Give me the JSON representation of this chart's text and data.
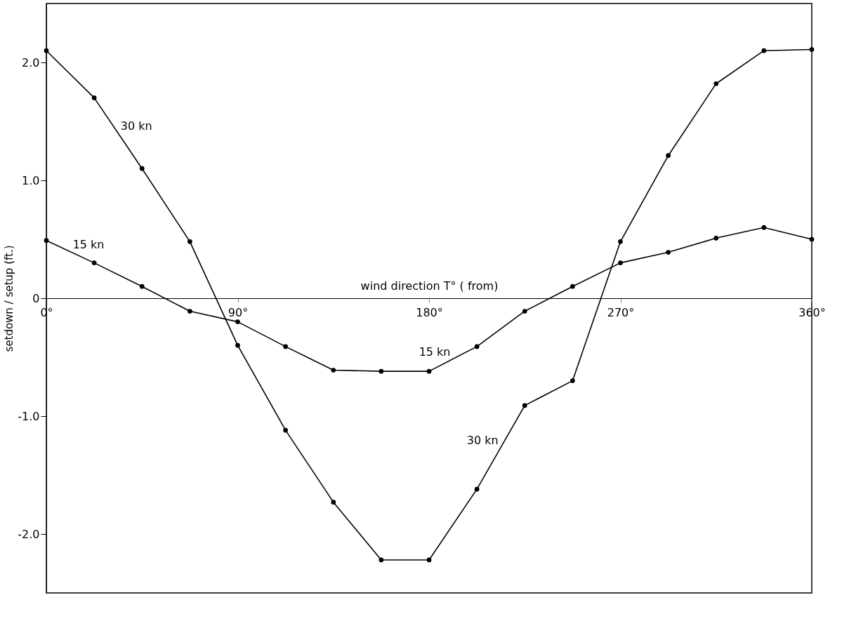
{
  "chart_data": {
    "type": "line",
    "xlabel": "wind direction  T° ( from)",
    "ylabel": "setdown / setup  (ft.)",
    "x": [
      0,
      22.5,
      45,
      67.5,
      90,
      112.5,
      135,
      157.5,
      180,
      202.5,
      225,
      247.5,
      270,
      292.5,
      315,
      337.5,
      360
    ],
    "series": [
      {
        "color": "#000000",
        "values": [
          2.1,
          1.7,
          1.1,
          0.48,
          -0.4,
          -1.12,
          -1.73,
          -2.22,
          -2.22,
          -1.62,
          -0.91,
          -0.7,
          0.48,
          1.21,
          1.82,
          2.1,
          2.11
        ]
      },
      {
        "color": "#000000",
        "values": [
          0.49,
          0.3,
          0.1,
          -0.11,
          -0.2,
          -0.41,
          -0.61,
          -0.62,
          -0.62,
          -0.41,
          -0.11,
          0.1,
          0.3,
          0.39,
          0.51,
          0.6,
          0.5
        ]
      }
    ],
    "xlim": [
      0,
      360
    ],
    "ylim": [
      -2.5,
      2.5
    ],
    "xticks": [
      {
        "value": 0,
        "label": "0°"
      },
      {
        "value": 90,
        "label": "90°"
      },
      {
        "value": 180,
        "label": "180°"
      },
      {
        "value": 270,
        "label": "270°"
      },
      {
        "value": 360,
        "label": "360°"
      }
    ],
    "yticks": [
      {
        "value": -2,
        "label": "-2.0"
      },
      {
        "value": -1,
        "label": "-1.0"
      },
      0,
      {
        "value": 1,
        "label": "1.0"
      },
      {
        "value": 2,
        "label": "2.0"
      }
    ],
    "annotations": [
      {
        "text": "30 kn",
        "x": 33.75,
        "y": 1.4
      },
      {
        "text": "15 kn",
        "x": 11.25,
        "y": 0.395
      },
      {
        "text": "15 kn",
        "x": 191.25,
        "y": -0.515
      },
      {
        "text": "30 kn",
        "x": 213.75,
        "y": -1.265
      }
    ],
    "grid": false,
    "marker": "circle",
    "line_style": "solid"
  }
}
